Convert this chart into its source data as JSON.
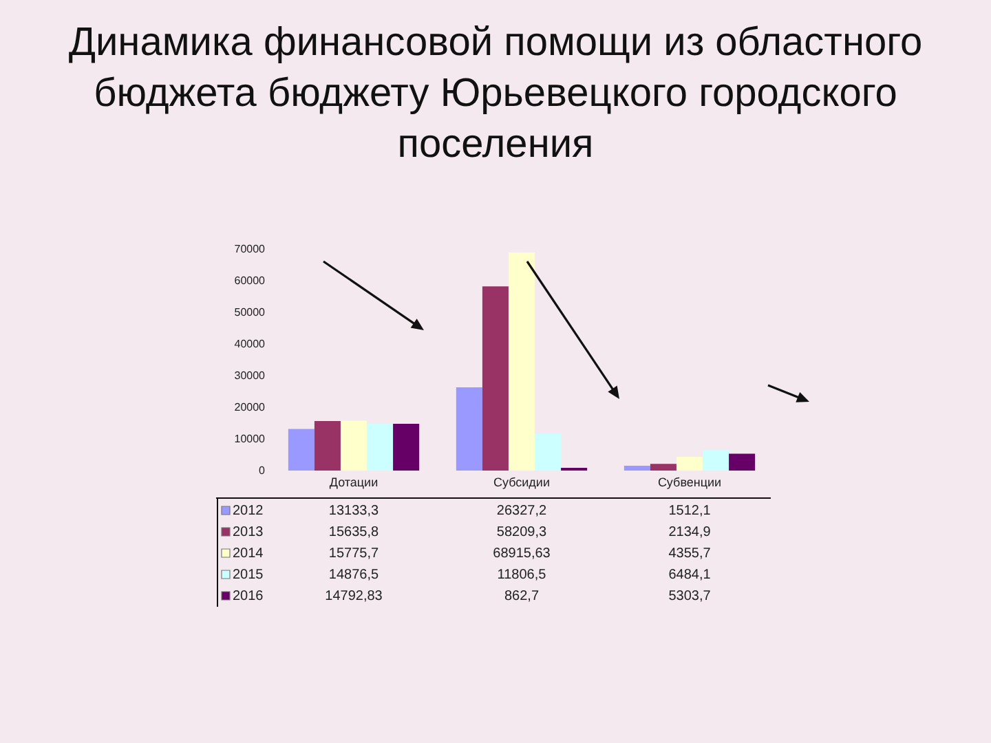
{
  "chart_data": {
    "type": "bar",
    "title": "Динамика финансовой помощи из областного бюджета бюджету Юрьевецкого городского поселения",
    "categories": [
      "Дотации",
      "Субсидии",
      "Субвенции"
    ],
    "series": [
      {
        "name": "2012",
        "color": "#9999ff",
        "values": [
          13133.3,
          26327.2,
          1512.1
        ],
        "value_labels": [
          "13133,3",
          "26327,2",
          "1512,1"
        ]
      },
      {
        "name": "2013",
        "color": "#993366",
        "values": [
          15635.8,
          58209.3,
          2134.9
        ],
        "value_labels": [
          "15635,8",
          "58209,3",
          "2134,9"
        ]
      },
      {
        "name": "2014",
        "color": "#ffffcc",
        "values": [
          15775.7,
          68915.63,
          4355.7
        ],
        "value_labels": [
          "15775,7",
          "68915,63",
          "4355,7"
        ]
      },
      {
        "name": "2015",
        "color": "#ccffff",
        "values": [
          14876.5,
          11806.5,
          6484.1
        ],
        "value_labels": [
          "14876,5",
          "11806,5",
          "6484,1"
        ]
      },
      {
        "name": "2016",
        "color": "#660066",
        "values": [
          14792.83,
          862.7,
          5303.7
        ],
        "value_labels": [
          "14792,83",
          "862,7",
          "5303,7"
        ]
      }
    ],
    "ylim": [
      0,
      70000
    ],
    "yticks": [
      0,
      10000,
      20000,
      30000,
      40000,
      50000,
      60000,
      70000
    ],
    "legend": "bottom"
  }
}
